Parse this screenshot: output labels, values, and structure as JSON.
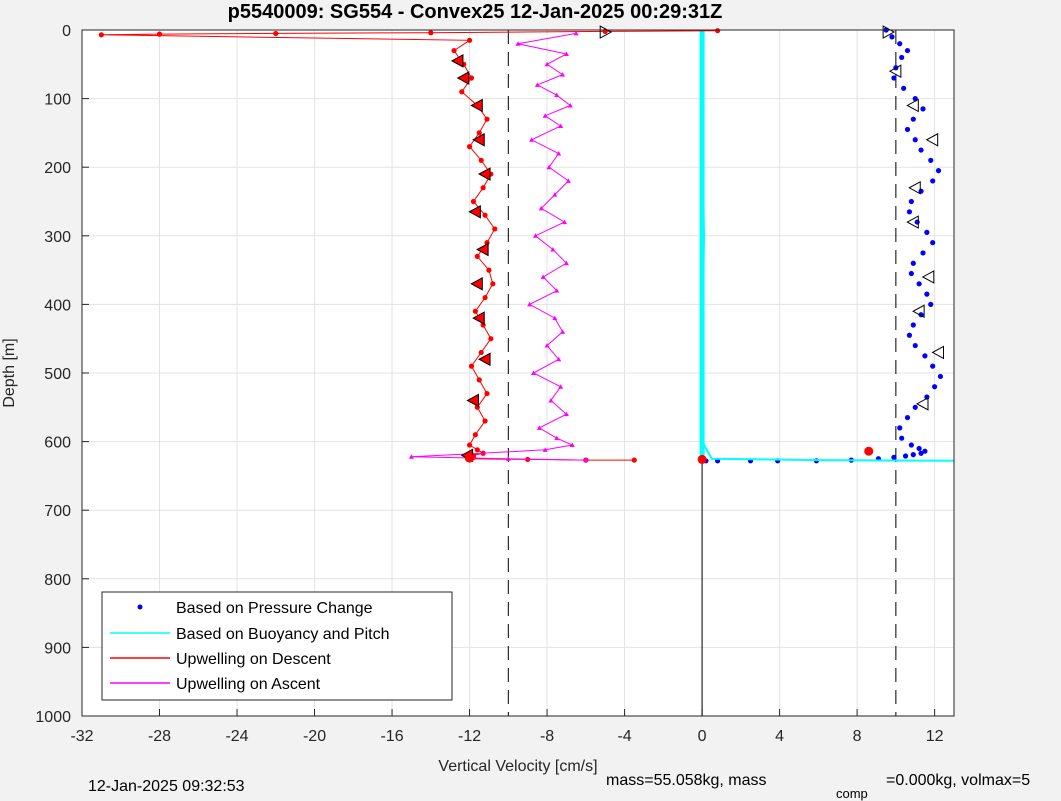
{
  "chart_data": {
    "type": "line",
    "title": "p5540009: SG554 - Convex25 12-Jan-2025 00:29:31Z",
    "xlabel": "Vertical Velocity [cm/s]",
    "ylabel": "Depth [m]",
    "xlim": [
      -32,
      13
    ],
    "ylim": [
      1000,
      0
    ],
    "xticks": [
      "-32",
      "-28",
      "-24",
      "-20",
      "-16",
      "-12",
      "-8",
      "-4",
      "0",
      "4",
      "8",
      "12"
    ],
    "yticks": [
      "0",
      "100",
      "200",
      "300",
      "400",
      "500",
      "600",
      "700",
      "800",
      "900",
      "1000"
    ],
    "grid": true,
    "legend_placement": "bottom-left",
    "reference_lines": [
      -10,
      0,
      10
    ],
    "series": [
      {
        "name": "Based on Pressure Change",
        "color": "#0000ff",
        "style": "dots",
        "x": [
          9.5,
          9.8,
          10.2,
          10.6,
          10.3,
          10.0,
          9.9,
          10.4,
          11.0,
          11.4,
          10.9,
          10.6,
          11.0,
          11.3,
          11.8,
          12.2,
          11.9,
          11.3,
          10.8,
          10.7,
          11.1,
          11.6,
          11.9,
          11.4,
          10.9,
          10.8,
          11.2,
          11.6,
          11.8,
          11.3,
          10.9,
          10.7,
          11.0,
          11.5,
          11.9,
          12.3,
          12.0,
          11.6,
          11.0,
          10.6,
          10.2,
          10.3,
          10.8,
          11.2,
          11.5,
          11.3,
          10.9,
          10.5,
          9.9,
          9.1,
          7.7,
          5.9,
          3.9,
          2.5,
          0.8,
          0.2
        ],
        "y": [
          0,
          10,
          20,
          30,
          40,
          55,
          70,
          85,
          100,
          115,
          130,
          145,
          160,
          175,
          190,
          205,
          220,
          235,
          250,
          265,
          280,
          295,
          310,
          325,
          340,
          355,
          370,
          385,
          400,
          415,
          430,
          445,
          460,
          475,
          490,
          505,
          520,
          535,
          550,
          565,
          580,
          595,
          605,
          610,
          614,
          617,
          619,
          621,
          623,
          625,
          627,
          628,
          628,
          628,
          628,
          628
        ]
      },
      {
        "name": "Based on Buoyancy and Pitch",
        "color": "#00ffff",
        "style": "line",
        "x": [
          0.0,
          0.0,
          0.1,
          0.0,
          0.0,
          0.5,
          6,
          13
        ],
        "y": [
          0,
          150,
          300,
          450,
          600,
          625,
          627,
          628
        ]
      },
      {
        "name": "Upwelling on Descent",
        "color": "#ff0000",
        "style": "line-dots",
        "x": [
          0.8,
          -5,
          -14,
          -22,
          -28,
          -31,
          -12,
          -12.8,
          -12.3,
          -11.9,
          -12.4,
          -11.6,
          -11.1,
          -11.5,
          -12.0,
          -11.4,
          -10.9,
          -11.3,
          -11.8,
          -11.2,
          -10.7,
          -11.1,
          -11.6,
          -11.0,
          -10.8,
          -11.2,
          -11.7,
          -11.3,
          -10.9,
          -11.4,
          -11.9,
          -11.5,
          -11.1,
          -11.6,
          -11.2,
          -11.7,
          -12.0,
          -11.6,
          -11.3,
          -11.8,
          -12.1,
          -11.8,
          -12.0,
          -12.1,
          -9,
          -6,
          -3.5
        ],
        "y": [
          1,
          2,
          4,
          5,
          6,
          7,
          15,
          30,
          50,
          70,
          90,
          110,
          130,
          150,
          170,
          190,
          210,
          230,
          250,
          270,
          290,
          310,
          330,
          350,
          370,
          390,
          410,
          430,
          450,
          470,
          490,
          510,
          530,
          550,
          570,
          590,
          605,
          612,
          617,
          620,
          622,
          623,
          624,
          625,
          626,
          627,
          627
        ]
      },
      {
        "name": "Upwelling on Ascent",
        "color": "#ff00ff",
        "style": "line-triangles",
        "x": [
          -6.5,
          -9.5,
          -7.0,
          -8.0,
          -7.2,
          -8.5,
          -7.5,
          -6.8,
          -8.1,
          -7.3,
          -8.8,
          -7.4,
          -7.9,
          -6.9,
          -7.6,
          -8.3,
          -7.1,
          -8.6,
          -7.7,
          -7.0,
          -8.2,
          -7.5,
          -8.9,
          -7.6,
          -7.2,
          -8.0,
          -7.4,
          -8.7,
          -7.3,
          -7.8,
          -7.0,
          -8.4,
          -7.5,
          -6.7,
          -8.1,
          -12,
          -15,
          -10,
          -6
        ],
        "y": [
          5,
          20,
          35,
          50,
          65,
          80,
          95,
          110,
          125,
          140,
          160,
          180,
          200,
          220,
          240,
          260,
          280,
          300,
          320,
          340,
          360,
          380,
          400,
          420,
          440,
          460,
          480,
          500,
          520,
          540,
          560,
          580,
          595,
          605,
          612,
          618,
          622,
          625,
          627
        ]
      }
    ],
    "markers": [
      {
        "x": 8.6,
        "y": 614,
        "color": "#ff0000"
      },
      {
        "x": 0.0,
        "y": 626,
        "color": "#ff0000"
      },
      {
        "x": -12.0,
        "y": 624,
        "color": "#ff0000"
      }
    ],
    "mean_descent_black_triangles": {
      "x": [
        -5,
        -12.6,
        -12.3,
        -11.6,
        -11.5,
        -11.2,
        -11.7,
        -11.3,
        -11.6,
        -11.5,
        -11.2,
        -11.8,
        -12.1,
        9.6,
        10.0,
        10.9,
        11.9,
        11.0,
        10.9,
        11.7,
        11.2,
        12.2,
        11.4
      ],
      "y": [
        3,
        45,
        70,
        110,
        160,
        210,
        265,
        320,
        370,
        420,
        480,
        540,
        620,
        3,
        60,
        110,
        160,
        230,
        280,
        360,
        410,
        470,
        545
      ]
    }
  },
  "footer": {
    "timestamp": "12-Jan-2025 09:32:53",
    "mass_text": "mass=55.058kg, mass",
    "comp_sub": "comp",
    "comp_text": "=0.000kg, volmax=5"
  }
}
